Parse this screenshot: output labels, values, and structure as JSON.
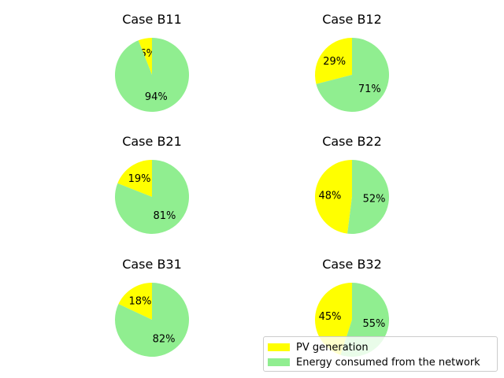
{
  "chart_data": [
    {
      "type": "pie",
      "title": "Case B11",
      "labels": [
        "PV generation",
        "Energy consumed from the network"
      ],
      "values": [
        6,
        94
      ],
      "value_labels": [
        "6%",
        "94%"
      ]
    },
    {
      "type": "pie",
      "title": "Case B12",
      "labels": [
        "PV generation",
        "Energy consumed from the network"
      ],
      "values": [
        29,
        71
      ],
      "value_labels": [
        "29%",
        "71%"
      ]
    },
    {
      "type": "pie",
      "title": "Case B21",
      "labels": [
        "PV generation",
        "Energy consumed from the network"
      ],
      "values": [
        19,
        81
      ],
      "value_labels": [
        "19%",
        "81%"
      ]
    },
    {
      "type": "pie",
      "title": "Case B22",
      "labels": [
        "PV generation",
        "Energy consumed from the network"
      ],
      "values": [
        48,
        52
      ],
      "value_labels": [
        "48%",
        "52%"
      ]
    },
    {
      "type": "pie",
      "title": "Case B31",
      "labels": [
        "PV generation",
        "Energy consumed from the network"
      ],
      "values": [
        18,
        82
      ],
      "value_labels": [
        "18%",
        "82%"
      ]
    },
    {
      "type": "pie",
      "title": "Case B32",
      "labels": [
        "PV generation",
        "Energy consumed from the network"
      ],
      "values": [
        45,
        55
      ],
      "value_labels": [
        "45%",
        "55%"
      ]
    }
  ],
  "legend": {
    "position": "lower-right",
    "items": [
      {
        "label": "PV generation",
        "color": "#ffff00"
      },
      {
        "label": "Energy consumed from the network",
        "color": "#90ee90"
      }
    ]
  }
}
